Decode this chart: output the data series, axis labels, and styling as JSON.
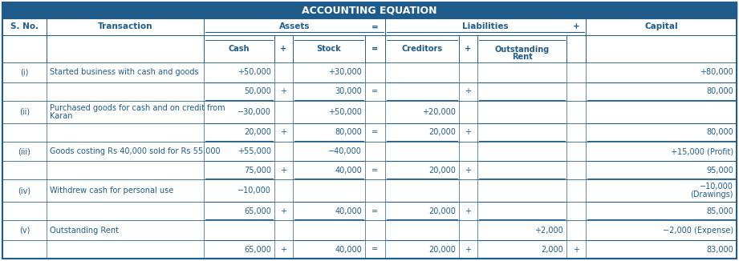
{
  "title": "ACCOUNTING EQUATION",
  "header_bg": "#1f5c8b",
  "header_text_color": "#ffffff",
  "body_text_color": "#1f5c8b",
  "border_color": "#1f5c8b",
  "bg_color": "#ffffff",
  "figsize": [
    9.21,
    3.26
  ],
  "dpi": 100,
  "rows": [
    {
      "type": "tx",
      "sno": "(i)",
      "tx": "Started business with cash and goods",
      "cash": "+50,000",
      "stock": "+30,000",
      "eq": "",
      "cred": "",
      "rent": "",
      "plus3": "",
      "cap": "+80,000"
    },
    {
      "type": "bal",
      "sno": "",
      "tx": "",
      "cash": "50,000",
      "stock": "30,000",
      "eq": "=",
      "cred": "",
      "rent": "",
      "plus3": "",
      "cap": "80,000"
    },
    {
      "type": "tx",
      "sno": "(ii)",
      "tx": "Purchased goods for cash and on credit from\nKaran",
      "cash": "−30,000",
      "stock": "+50,000",
      "eq": "",
      "cred": "+20,000",
      "rent": "",
      "plus3": "",
      "cap": ""
    },
    {
      "type": "bal",
      "sno": "",
      "tx": "",
      "cash": "20,000",
      "stock": "80,000",
      "eq": "=",
      "cred": "20,000",
      "rent": "",
      "plus3": "",
      "cap": "80,000"
    },
    {
      "type": "tx",
      "sno": "(iii)",
      "tx": "Goods costing Rs 40,000 sold for Rs 55,000",
      "cash": "+55,000",
      "stock": "−40,000",
      "eq": "",
      "cred": "",
      "rent": "",
      "plus3": "",
      "cap": "+15,000 (Profit)"
    },
    {
      "type": "bal",
      "sno": "",
      "tx": "",
      "cash": "75,000",
      "stock": "40,000",
      "eq": "=",
      "cred": "20,000",
      "rent": "",
      "plus3": "",
      "cap": "95,000"
    },
    {
      "type": "tx",
      "sno": "(iv)",
      "tx": "Withdrew cash for personal use",
      "cash": "−10,000",
      "stock": "",
      "eq": "",
      "cred": "",
      "rent": "",
      "plus3": "",
      "cap": "−10,000\n(Drawings)"
    },
    {
      "type": "bal",
      "sno": "",
      "tx": "",
      "cash": "65,000",
      "stock": "40,000",
      "eq": "=",
      "cred": "20,000",
      "rent": "",
      "plus3": "",
      "cap": "85,000"
    },
    {
      "type": "tx",
      "sno": "(v)",
      "tx": "Outstanding Rent",
      "cash": "",
      "stock": "",
      "eq": "",
      "cred": "",
      "rent": "+2,000",
      "plus3": "",
      "cap": "−2,000 (Expense)"
    },
    {
      "type": "bal",
      "sno": "",
      "tx": "",
      "cash": "65,000",
      "stock": "40,000",
      "eq": "=",
      "cred": "20,000",
      "rent": "2,000",
      "plus3": "+",
      "cap": "83,000"
    }
  ]
}
